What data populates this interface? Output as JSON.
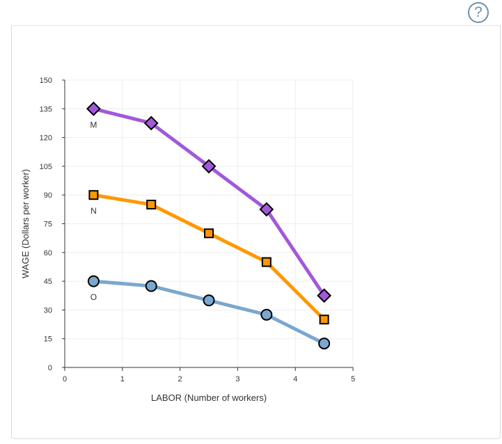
{
  "help": {
    "label": "?"
  },
  "colors": {
    "M": "#a259d9",
    "N": "#ff9800",
    "O": "#7ba7cf",
    "grid": "#eeeeee",
    "axis": "#333333"
  },
  "chart_data": {
    "type": "line",
    "title": "",
    "xlabel": "LABOR (Number of workers)",
    "ylabel": "WAGE (Dollars per worker)",
    "xlim": [
      0,
      5
    ],
    "ylim": [
      0,
      150
    ],
    "xticks": [
      0,
      1,
      2,
      3,
      4,
      5
    ],
    "yticks": [
      0,
      15,
      30,
      45,
      60,
      75,
      90,
      105,
      120,
      135,
      150
    ],
    "grid": true,
    "series": [
      {
        "name": "M",
        "marker": "diamond",
        "x": [
          0.5,
          1.5,
          2.5,
          3.5,
          4.5
        ],
        "values": [
          135,
          127.5,
          105,
          82.5,
          37.5
        ]
      },
      {
        "name": "N",
        "marker": "square",
        "x": [
          0.5,
          1.5,
          2.5,
          3.5,
          4.5
        ],
        "values": [
          90,
          85,
          70,
          55,
          25
        ]
      },
      {
        "name": "O",
        "marker": "circle",
        "x": [
          0.5,
          1.5,
          2.5,
          3.5,
          4.5
        ],
        "values": [
          45,
          42.5,
          35,
          27.5,
          12.5
        ]
      }
    ]
  }
}
